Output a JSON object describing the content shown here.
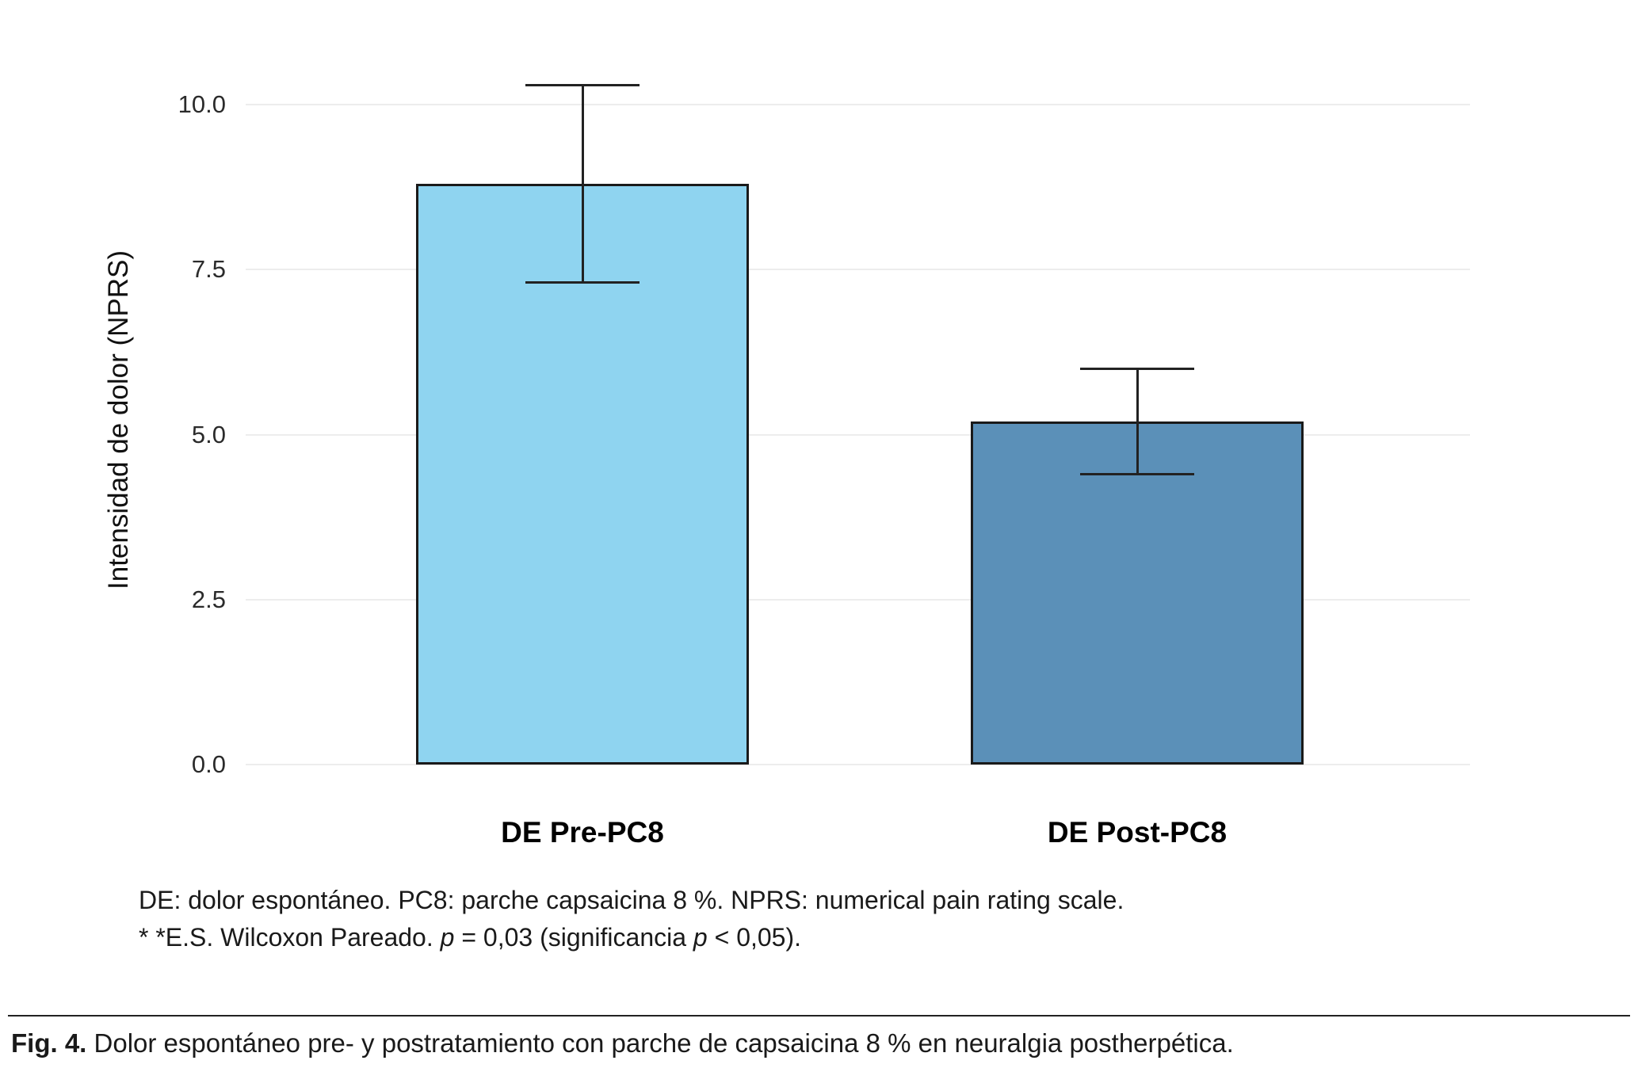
{
  "chart_data": {
    "type": "bar",
    "categories": [
      "DE Pre-PC8",
      "DE Post-PC8"
    ],
    "values": [
      8.8,
      5.2
    ],
    "error_low": [
      7.3,
      4.4
    ],
    "error_high": [
      10.3,
      6.0
    ],
    "bar_colors": [
      "#8fd4f0",
      "#5b90b8"
    ],
    "title": "",
    "xlabel": "",
    "ylabel": "Intensidad de dolor (NPRS)",
    "yticks": [
      0,
      2.5,
      5,
      7.5,
      10
    ],
    "ylim": [
      0,
      11
    ],
    "grid": true,
    "legend": "none"
  },
  "footnote": {
    "line1": "DE: dolor espontáneo. PC8: parche capsaicina 8 %. NPRS: numerical pain rating scale.",
    "line2_segments": [
      {
        "text": "* *E.S. Wilcoxon Pareado. ",
        "italic": false
      },
      {
        "text": "p",
        "italic": true
      },
      {
        "text": " = 0,03 (significancia ",
        "italic": false
      },
      {
        "text": "p",
        "italic": true
      },
      {
        "text": " < 0,05).",
        "italic": false
      }
    ]
  },
  "caption": {
    "label": "Fig. 4.",
    "text": " Dolor espontáneo pre- y postratamiento con parche de capsaicina 8 % en neuralgia postherpética."
  }
}
